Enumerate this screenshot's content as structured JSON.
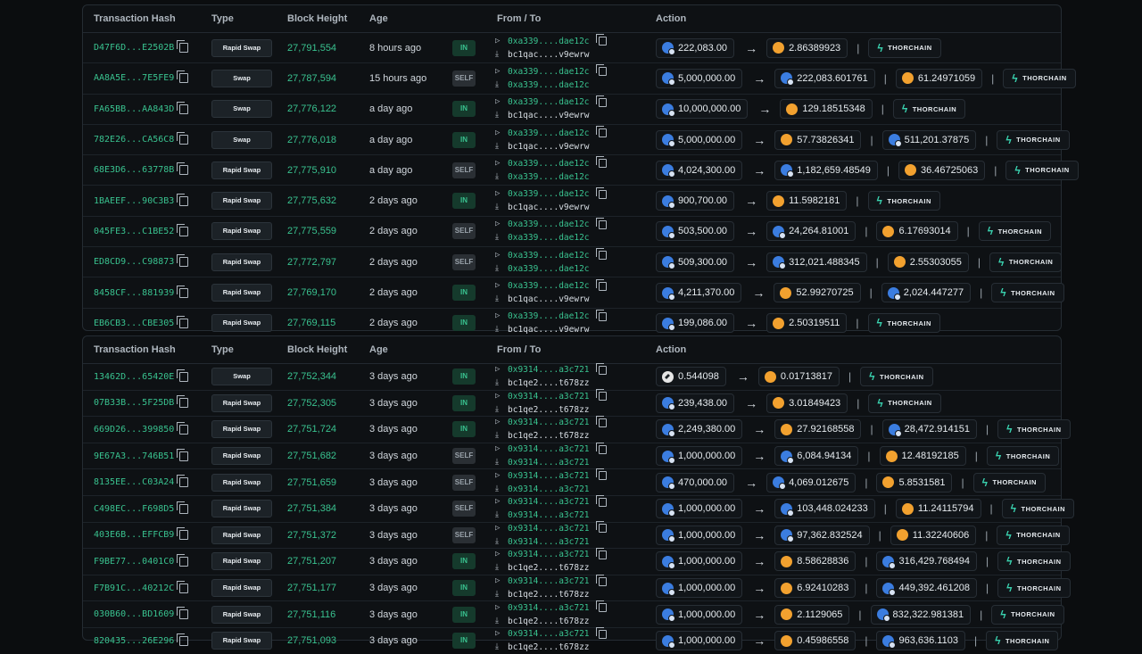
{
  "headers": {
    "hash": "Transaction Hash",
    "type": "Type",
    "block": "Block Height",
    "age": "Age",
    "fromto": "From / To",
    "action": "Action"
  },
  "provider": "THORCHAIN",
  "tables": [
    {
      "rows": [
        {
          "hash": "D47F6D...E2502B",
          "type": "Rapid Swap",
          "block": "27,791,554",
          "age": "8 hours ago",
          "dir": "IN",
          "from": "0xa339....dae12c",
          "to": "bc1qac....v9ewrw",
          "assets": [
            {
              "t": "rune",
              "v": "222,083.00"
            },
            {
              "t": "btc",
              "v": "2.86389923"
            }
          ]
        },
        {
          "hash": "AA8A5E...7E5FE9",
          "type": "Swap",
          "block": "27,787,594",
          "age": "15 hours ago",
          "dir": "SELF",
          "from": "0xa339....dae12c",
          "to": "0xa339....dae12c",
          "assets": [
            {
              "t": "rune",
              "v": "5,000,000.00"
            },
            {
              "t": "rune",
              "v": "222,083.601761"
            },
            {
              "t": "btc",
              "v": "61.24971059"
            }
          ]
        },
        {
          "hash": "FA65BB...AA843D",
          "type": "Swap",
          "block": "27,776,122",
          "age": "a day ago",
          "dir": "IN",
          "from": "0xa339....dae12c",
          "to": "bc1qac....v9ewrw",
          "assets": [
            {
              "t": "rune",
              "v": "10,000,000.00"
            },
            {
              "t": "btc",
              "v": "129.18515348"
            }
          ]
        },
        {
          "hash": "782E26...CA56C8",
          "type": "Swap",
          "block": "27,776,018",
          "age": "a day ago",
          "dir": "IN",
          "from": "0xa339....dae12c",
          "to": "bc1qac....v9ewrw",
          "assets": [
            {
              "t": "rune",
              "v": "5,000,000.00"
            },
            {
              "t": "btc",
              "v": "57.73826341"
            },
            {
              "t": "rune",
              "v": "511,201.37875"
            }
          ]
        },
        {
          "hash": "68E3D6...63778B",
          "type": "Rapid Swap",
          "block": "27,775,910",
          "age": "a day ago",
          "dir": "SELF",
          "from": "0xa339....dae12c",
          "to": "0xa339....dae12c",
          "assets": [
            {
              "t": "rune",
              "v": "4,024,300.00"
            },
            {
              "t": "rune",
              "v": "1,182,659.48549"
            },
            {
              "t": "btc",
              "v": "36.46725063"
            }
          ]
        },
        {
          "hash": "1BAEEF...90C3B3",
          "type": "Rapid Swap",
          "block": "27,775,632",
          "age": "2 days ago",
          "dir": "IN",
          "from": "0xa339....dae12c",
          "to": "bc1qac....v9ewrw",
          "assets": [
            {
              "t": "rune",
              "v": "900,700.00"
            },
            {
              "t": "btc",
              "v": "11.5982181"
            }
          ]
        },
        {
          "hash": "045FE3...C1BE52",
          "type": "Rapid Swap",
          "block": "27,775,559",
          "age": "2 days ago",
          "dir": "SELF",
          "from": "0xa339....dae12c",
          "to": "0xa339....dae12c",
          "assets": [
            {
              "t": "rune",
              "v": "503,500.00"
            },
            {
              "t": "rune",
              "v": "24,264.81001"
            },
            {
              "t": "btc",
              "v": "6.17693014"
            }
          ]
        },
        {
          "hash": "ED8CD9...C98873",
          "type": "Rapid Swap",
          "block": "27,772,797",
          "age": "2 days ago",
          "dir": "SELF",
          "from": "0xa339....dae12c",
          "to": "0xa339....dae12c",
          "assets": [
            {
              "t": "rune",
              "v": "509,300.00"
            },
            {
              "t": "rune",
              "v": "312,021.488345"
            },
            {
              "t": "btc",
              "v": "2.55303055"
            }
          ]
        },
        {
          "hash": "8458CF...881939",
          "type": "Rapid Swap",
          "block": "27,769,170",
          "age": "2 days ago",
          "dir": "IN",
          "from": "0xa339....dae12c",
          "to": "bc1qac....v9ewrw",
          "assets": [
            {
              "t": "rune",
              "v": "4,211,370.00"
            },
            {
              "t": "btc",
              "v": "52.99270725"
            },
            {
              "t": "rune",
              "v": "2,024.447277"
            }
          ]
        },
        {
          "hash": "EB6CB3...CBE305",
          "type": "Rapid Swap",
          "block": "27,769,115",
          "age": "2 days ago",
          "dir": "IN",
          "from": "0xa339....dae12c",
          "to": "bc1qac....v9ewrw",
          "assets": [
            {
              "t": "rune",
              "v": "199,086.00"
            },
            {
              "t": "btc",
              "v": "2.50319511"
            }
          ]
        }
      ]
    },
    {
      "rows": [
        {
          "hash": "13462D...65420E",
          "type": "Swap",
          "block": "27,752,344",
          "age": "3 days ago",
          "dir": "IN",
          "from": "0x9314....a3c721",
          "to": "bc1qe2....t678zz",
          "assets": [
            {
              "t": "eth",
              "v": "0.544098"
            },
            {
              "t": "btc",
              "v": "0.01713817"
            }
          ]
        },
        {
          "hash": "07B33B...5F25DB",
          "type": "Rapid Swap",
          "block": "27,752,305",
          "age": "3 days ago",
          "dir": "IN",
          "from": "0x9314....a3c721",
          "to": "bc1qe2....t678zz",
          "assets": [
            {
              "t": "rune",
              "v": "239,438.00"
            },
            {
              "t": "btc",
              "v": "3.01849423"
            }
          ]
        },
        {
          "hash": "669D26...399850",
          "type": "Rapid Swap",
          "block": "27,751,724",
          "age": "3 days ago",
          "dir": "IN",
          "from": "0x9314....a3c721",
          "to": "bc1qe2....t678zz",
          "assets": [
            {
              "t": "rune",
              "v": "2,249,380.00"
            },
            {
              "t": "btc",
              "v": "27.92168558"
            },
            {
              "t": "rune",
              "v": "28,472.914151"
            }
          ]
        },
        {
          "hash": "9E67A3...746B51",
          "type": "Rapid Swap",
          "block": "27,751,682",
          "age": "3 days ago",
          "dir": "SELF",
          "from": "0x9314....a3c721",
          "to": "0x9314....a3c721",
          "assets": [
            {
              "t": "rune",
              "v": "1,000,000.00"
            },
            {
              "t": "rune",
              "v": "6,084.94134"
            },
            {
              "t": "btc",
              "v": "12.48192185"
            }
          ]
        },
        {
          "hash": "8135EE...C03A24",
          "type": "Rapid Swap",
          "block": "27,751,659",
          "age": "3 days ago",
          "dir": "SELF",
          "from": "0x9314....a3c721",
          "to": "0x9314....a3c721",
          "assets": [
            {
              "t": "rune",
              "v": "470,000.00"
            },
            {
              "t": "rune",
              "v": "4,069.012675"
            },
            {
              "t": "btc",
              "v": "5.8531581"
            }
          ]
        },
        {
          "hash": "C498EC...F698D5",
          "type": "Rapid Swap",
          "block": "27,751,384",
          "age": "3 days ago",
          "dir": "SELF",
          "from": "0x9314....a3c721",
          "to": "0x9314....a3c721",
          "assets": [
            {
              "t": "rune",
              "v": "1,000,000.00"
            },
            {
              "t": "rune",
              "v": "103,448.024233"
            },
            {
              "t": "btc",
              "v": "11.24115794"
            }
          ]
        },
        {
          "hash": "403E6B...EFFCB9",
          "type": "Rapid Swap",
          "block": "27,751,372",
          "age": "3 days ago",
          "dir": "SELF",
          "from": "0x9314....a3c721",
          "to": "0x9314....a3c721",
          "assets": [
            {
              "t": "rune",
              "v": "1,000,000.00"
            },
            {
              "t": "rune",
              "v": "97,362.832524"
            },
            {
              "t": "btc",
              "v": "11.32240606"
            }
          ]
        },
        {
          "hash": "F9BE77...0401C0",
          "type": "Rapid Swap",
          "block": "27,751,207",
          "age": "3 days ago",
          "dir": "IN",
          "from": "0x9314....a3c721",
          "to": "bc1qe2....t678zz",
          "assets": [
            {
              "t": "rune",
              "v": "1,000,000.00"
            },
            {
              "t": "btc",
              "v": "8.58628836"
            },
            {
              "t": "rune",
              "v": "316,429.768494"
            }
          ]
        },
        {
          "hash": "F7B91C...40212C",
          "type": "Rapid Swap",
          "block": "27,751,177",
          "age": "3 days ago",
          "dir": "IN",
          "from": "0x9314....a3c721",
          "to": "bc1qe2....t678zz",
          "assets": [
            {
              "t": "rune",
              "v": "1,000,000.00"
            },
            {
              "t": "btc",
              "v": "6.92410283"
            },
            {
              "t": "rune",
              "v": "449,392.461208"
            }
          ]
        },
        {
          "hash": "030B60...BD1609",
          "type": "Rapid Swap",
          "block": "27,751,116",
          "age": "3 days ago",
          "dir": "IN",
          "from": "0x9314....a3c721",
          "to": "bc1qe2....t678zz",
          "assets": [
            {
              "t": "rune",
              "v": "1,000,000.00"
            },
            {
              "t": "btc",
              "v": "2.1129065"
            },
            {
              "t": "rune",
              "v": "832,322.981381"
            }
          ]
        },
        {
          "hash": "820435...26E296",
          "type": "Rapid Swap",
          "block": "27,751,093",
          "age": "3 days ago",
          "dir": "IN",
          "from": "0x9314....a3c721",
          "to": "bc1qe2....t678zz",
          "assets": [
            {
              "t": "rune",
              "v": "1,000,000.00"
            },
            {
              "t": "btc",
              "v": "0.45986558"
            },
            {
              "t": "rune",
              "v": "963,636.1103"
            }
          ]
        }
      ]
    }
  ]
}
